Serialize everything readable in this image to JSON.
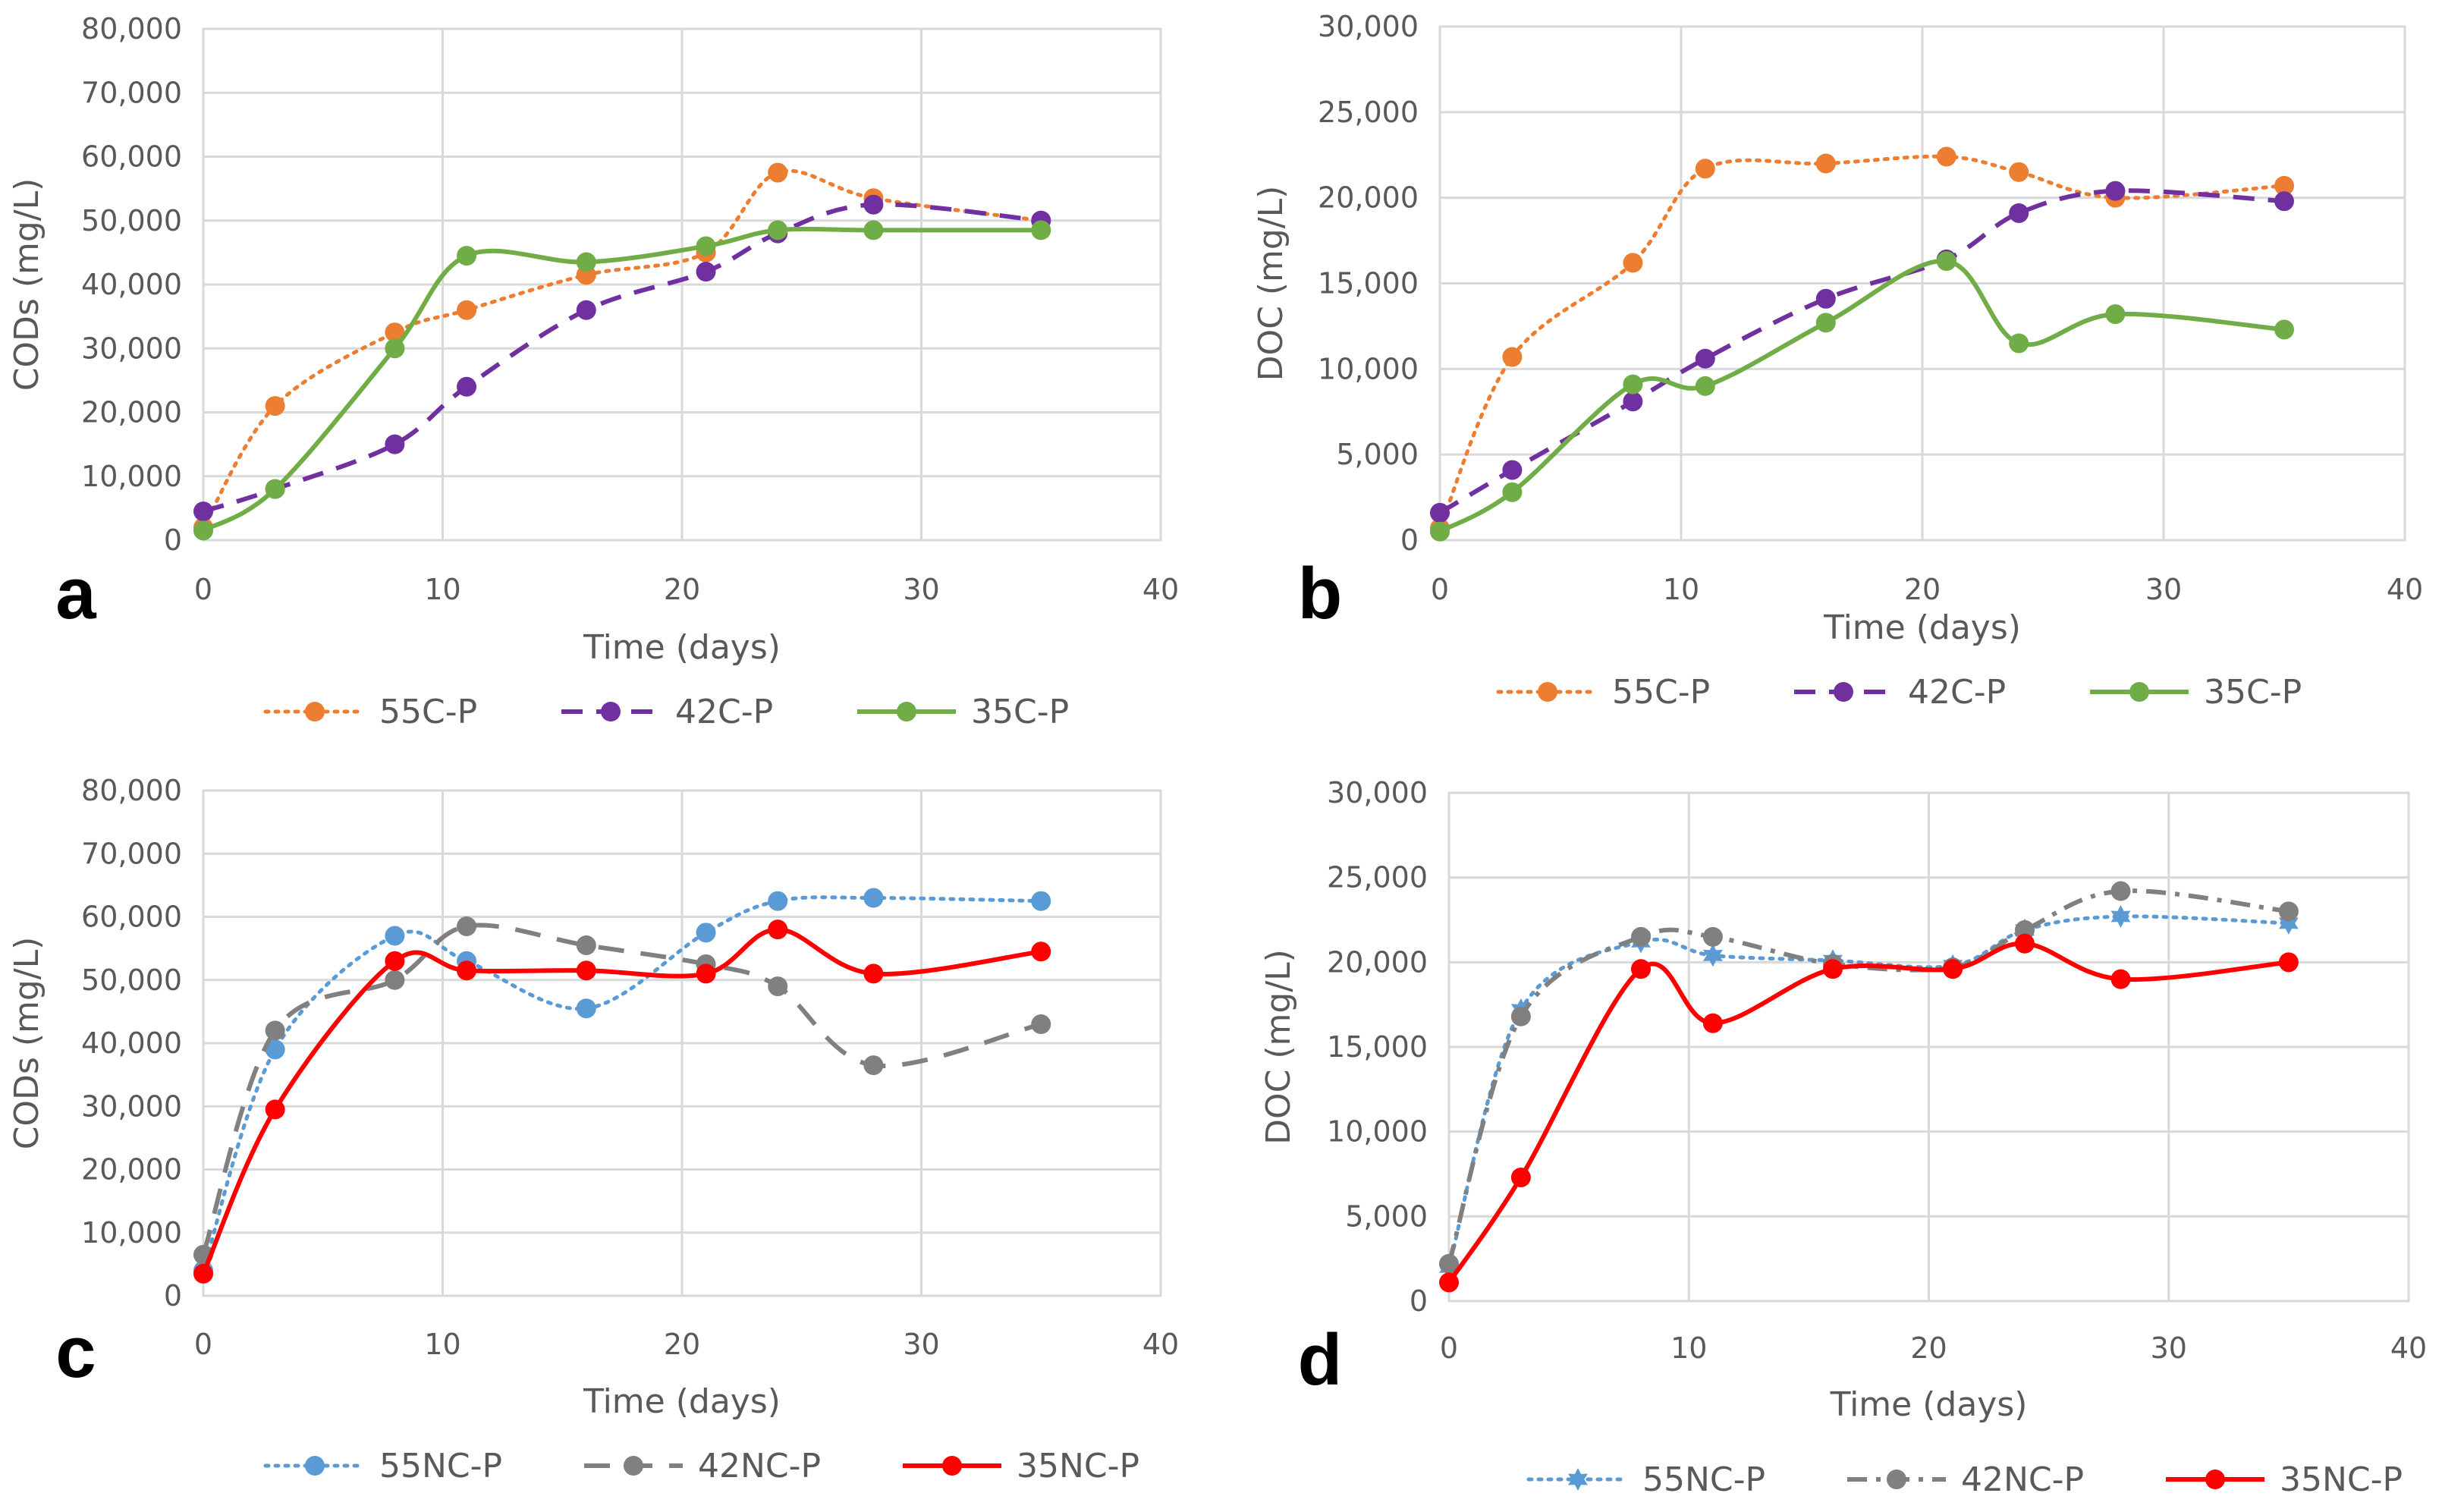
{
  "chart_data": [
    {
      "type": "line",
      "panel_label": "a",
      "xlabel": "Time (days)",
      "ylabel": "CODs (mg/L)",
      "xlim": [
        0,
        40
      ],
      "ylim": [
        0,
        80000
      ],
      "x_ticks": [
        "0",
        "10",
        "20",
        "30",
        "40"
      ],
      "y_ticks": [
        "0",
        "10,000",
        "20,000",
        "30,000",
        "40,000",
        "50,000",
        "60,000",
        "70,000",
        "80,000"
      ],
      "grid": true,
      "legend_position": "bottom",
      "x": [
        0,
        3,
        8,
        11,
        16,
        21,
        24,
        28,
        35
      ],
      "series": [
        {
          "name": "55C-P",
          "color": "#ed7d31",
          "style": "dotted",
          "marker": "circle",
          "values": [
            2000,
            21000,
            32500,
            36000,
            41500,
            45000,
            57500,
            53500,
            50000
          ]
        },
        {
          "name": "42C-P",
          "color": "#7030a0",
          "style": "dashed",
          "marker": "circle",
          "values": [
            4500,
            8000,
            15000,
            24000,
            36000,
            42000,
            48000,
            52500,
            50000
          ]
        },
        {
          "name": "35C-P",
          "color": "#70ad47",
          "style": "solid",
          "marker": "circle",
          "values": [
            1500,
            8000,
            30000,
            44500,
            43500,
            46000,
            48500,
            48500,
            48500
          ]
        }
      ]
    },
    {
      "type": "line",
      "panel_label": "b",
      "xlabel": "Time (days)",
      "ylabel": "DOC (mg/L)",
      "xlim": [
        0,
        40
      ],
      "ylim": [
        0,
        30000
      ],
      "x_ticks": [
        "0",
        "10",
        "20",
        "30",
        "40"
      ],
      "y_ticks": [
        "0",
        "5,000",
        "10,000",
        "15,000",
        "20,000",
        "25,000",
        "30,000"
      ],
      "grid": true,
      "legend_position": "bottom",
      "x": [
        0,
        3,
        8,
        11,
        16,
        21,
        24,
        28,
        35
      ],
      "series": [
        {
          "name": "55C-P",
          "color": "#ed7d31",
          "style": "dotted",
          "marker": "circle",
          "values": [
            700,
            10700,
            16200,
            21700,
            22000,
            22400,
            21500,
            20000,
            20700
          ]
        },
        {
          "name": "42C-P",
          "color": "#7030a0",
          "style": "dashed",
          "marker": "circle",
          "values": [
            1600,
            4100,
            8100,
            10600,
            14100,
            16400,
            19100,
            20400,
            19800
          ]
        },
        {
          "name": "35C-P",
          "color": "#70ad47",
          "style": "solid",
          "marker": "circle",
          "values": [
            500,
            2800,
            9100,
            9000,
            12700,
            16300,
            11500,
            13200,
            12300
          ]
        }
      ]
    },
    {
      "type": "line",
      "panel_label": "c",
      "xlabel": "Time (days)",
      "ylabel": "CODs (mg/L)",
      "xlim": [
        0,
        40
      ],
      "ylim": [
        0,
        80000
      ],
      "x_ticks": [
        "0",
        "10",
        "20",
        "30",
        "40"
      ],
      "y_ticks": [
        "0",
        "10,000",
        "20,000",
        "30,000",
        "40,000",
        "50,000",
        "60,000",
        "70,000",
        "80,000"
      ],
      "grid": true,
      "legend_position": "bottom",
      "x": [
        0,
        3,
        8,
        11,
        16,
        21,
        24,
        28,
        35
      ],
      "series": [
        {
          "name": "55NC-P",
          "color": "#5b9bd5",
          "style": "dotted",
          "marker": "circle",
          "values": [
            4000,
            39000,
            57000,
            53000,
            45500,
            57500,
            62500,
            63000,
            62500
          ]
        },
        {
          "name": "42NC-P",
          "color": "#808080",
          "style": "longdash",
          "marker": "circle",
          "values": [
            6500,
            42000,
            50000,
            58500,
            55500,
            52500,
            49000,
            36500,
            43000
          ]
        },
        {
          "name": "35NC-P",
          "color": "#ff0000",
          "style": "solid",
          "marker": "circle",
          "values": [
            3500,
            29500,
            53000,
            51500,
            51500,
            51000,
            58000,
            51000,
            54500
          ]
        }
      ]
    },
    {
      "type": "line",
      "panel_label": "d",
      "xlabel": "Time (days)",
      "ylabel": "DOC (mg/L)",
      "xlim": [
        0,
        40
      ],
      "ylim": [
        0,
        30000
      ],
      "x_ticks": [
        "0",
        "10",
        "20",
        "30",
        "40"
      ],
      "y_ticks": [
        "0",
        "5,000",
        "10,000",
        "15,000",
        "20,000",
        "25,000",
        "30,000"
      ],
      "grid": true,
      "legend_position": "bottom",
      "x": [
        0,
        3,
        8,
        11,
        16,
        21,
        24,
        28,
        35
      ],
      "series": [
        {
          "name": "55NC-P",
          "color": "#5b9bd5",
          "style": "dotted",
          "marker": "star",
          "values": [
            2000,
            17200,
            21200,
            20400,
            20100,
            19800,
            21900,
            22700,
            22300
          ]
        },
        {
          "name": "42NC-P",
          "color": "#808080",
          "style": "dashdot",
          "marker": "circle",
          "values": [
            2200,
            16800,
            21500,
            21500,
            19900,
            19700,
            21900,
            24200,
            23000
          ]
        },
        {
          "name": "35NC-P",
          "color": "#ff0000",
          "style": "solid",
          "marker": "circle",
          "values": [
            1100,
            7300,
            19600,
            16400,
            19600,
            19600,
            21100,
            19000,
            20000
          ]
        }
      ]
    }
  ]
}
